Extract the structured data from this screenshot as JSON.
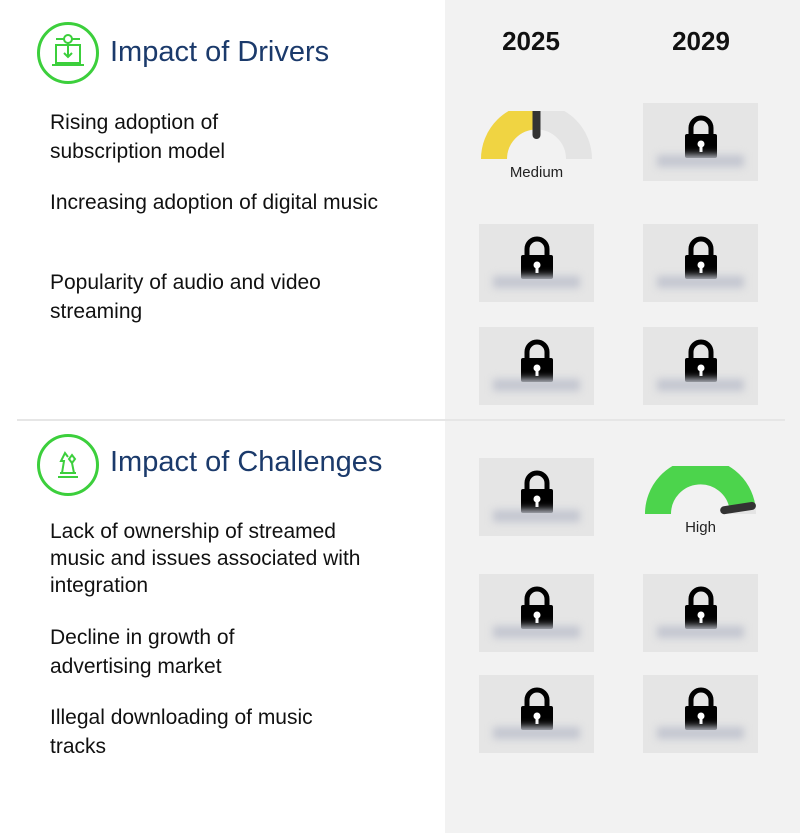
{
  "years": [
    "2025",
    "2029"
  ],
  "drivers": {
    "title": "Impact of Drivers",
    "icon": "computer-download-icon",
    "items": [
      "Rising adoption of subscription model",
      "Increasing adoption of digital music",
      "Popularity of audio and video streaming"
    ],
    "impacts": [
      [
        "Medium",
        "locked"
      ],
      [
        "locked",
        "locked"
      ],
      [
        "locked",
        "locked"
      ]
    ]
  },
  "challenges": {
    "title": "Impact of Challenges",
    "icon": "chess-pieces-icon",
    "items": [
      "Lack of ownership of streamed music and issues associated with integration",
      "Decline in growth of advertising market",
      "Illegal downloading of music tracks"
    ],
    "impacts": [
      [
        "locked",
        "High"
      ],
      [
        "locked",
        "locked"
      ],
      [
        "locked",
        "locked"
      ]
    ]
  },
  "gauges": {
    "medium": {
      "label": "Medium",
      "level": 0.5,
      "color": "#f0d442"
    },
    "high": {
      "label": "High",
      "level": 0.95,
      "color": "#4cd44c"
    }
  },
  "colors": {
    "title": "#1b3a6b",
    "accent": "#3ccf3c",
    "panel": "#f2f2f2"
  }
}
